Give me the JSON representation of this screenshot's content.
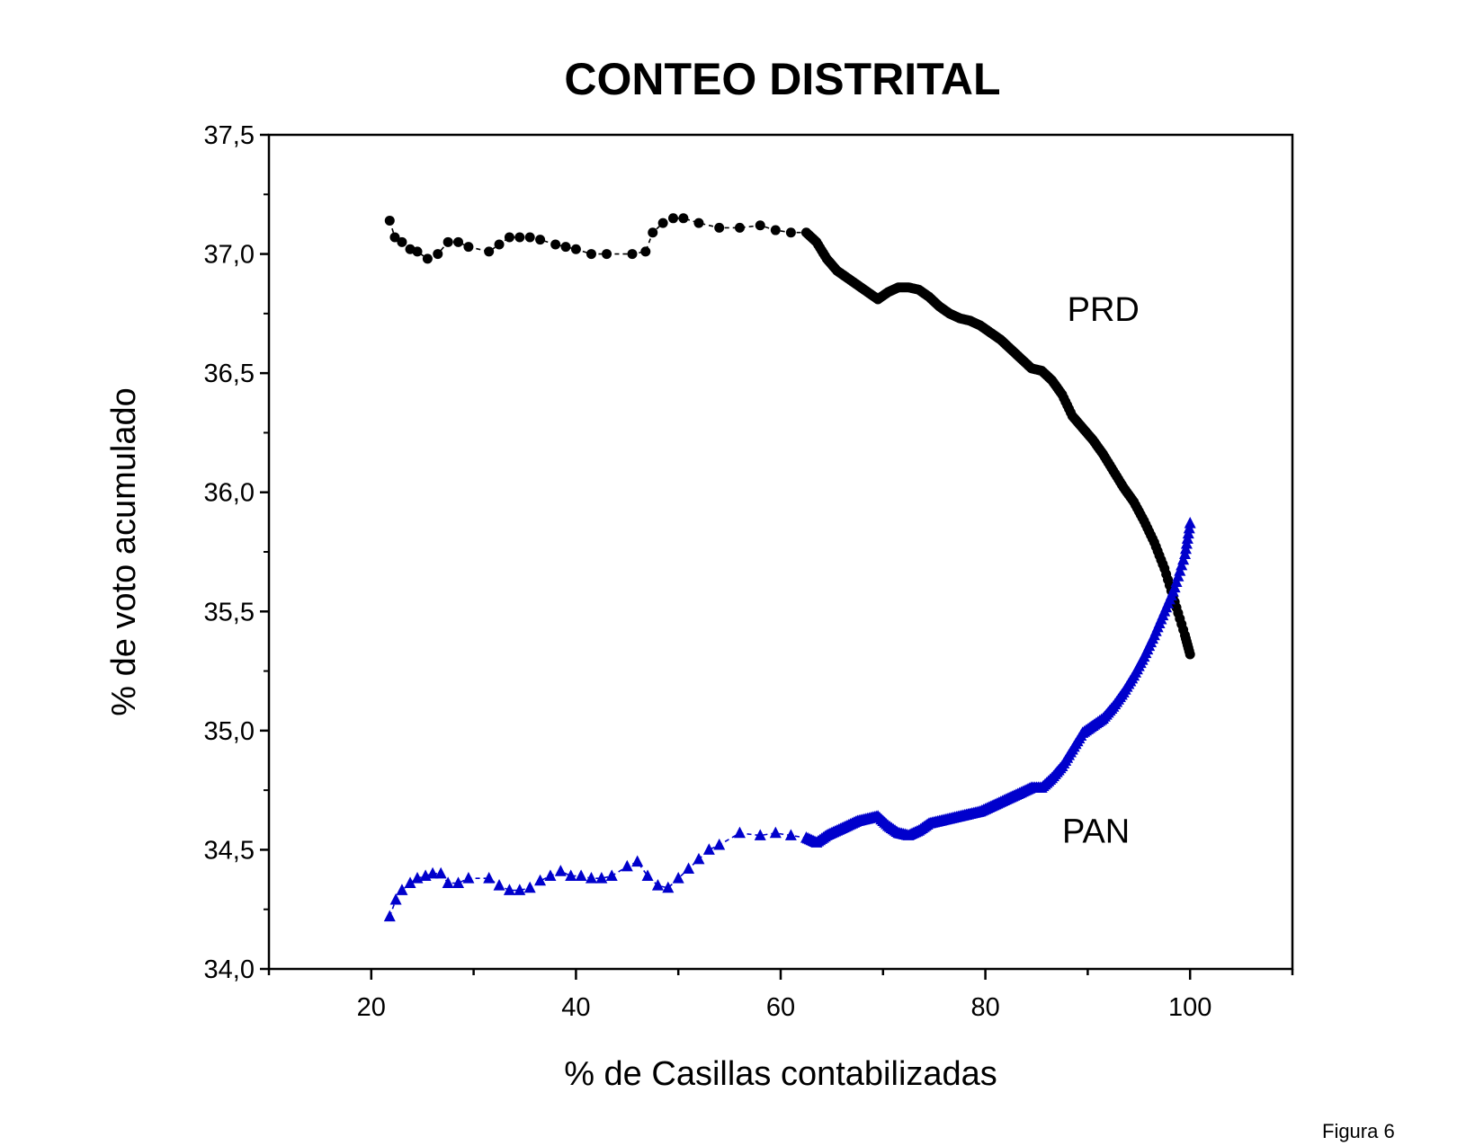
{
  "chart_data": {
    "type": "scatter",
    "title": "CONTEO DISTRITAL",
    "xlabel": "% de Casillas contabilizadas",
    "ylabel": "% de voto acumulado",
    "xlim": [
      10,
      110
    ],
    "ylim": [
      34.0,
      37.5
    ],
    "xticks": [
      20,
      40,
      60,
      80,
      100
    ],
    "xtick_labels": [
      "20",
      "40",
      "60",
      "80",
      "100"
    ],
    "yticks": [
      34.0,
      34.5,
      35.0,
      35.5,
      36.0,
      36.5,
      37.0,
      37.5
    ],
    "ytick_labels": [
      "34,0",
      "34,5",
      "35,0",
      "35,5",
      "36,0",
      "36,5",
      "37,0",
      "37,5"
    ],
    "grid": false,
    "legend": "none",
    "series": [
      {
        "name": "PRD",
        "marker": "circle",
        "color": "#000000",
        "x": [
          21.8,
          22.3,
          23.0,
          23.8,
          24.5,
          25.5,
          26.5,
          27.5,
          28.5,
          29.5,
          31.5,
          32.5,
          33.5,
          34.5,
          35.5,
          36.5,
          38.0,
          39.0,
          40.0,
          41.5,
          43.0,
          45.5,
          46.8,
          47.5,
          48.5,
          49.5,
          50.5,
          52.0,
          54.0,
          56.0,
          58.0,
          59.5,
          61.0,
          62.5,
          63.5,
          64.5,
          65.5,
          66.5,
          67.5,
          68.5,
          69.5,
          70.5,
          71.5,
          72.5,
          73.5,
          74.5,
          75.5,
          76.5,
          77.5,
          78.5,
          79.5,
          80.5,
          81.5,
          82.5,
          83.5,
          84.5,
          85.5,
          86.5,
          87.5,
          88.5,
          89.5,
          90.5,
          91.5,
          92.5,
          93.5,
          94.5,
          95.5,
          96.5,
          97.5,
          98.5,
          99.5,
          100.0
        ],
        "values": [
          37.14,
          37.07,
          37.05,
          37.02,
          37.01,
          36.98,
          37.0,
          37.05,
          37.05,
          37.03,
          37.01,
          37.04,
          37.07,
          37.07,
          37.07,
          37.06,
          37.04,
          37.03,
          37.02,
          37.0,
          37.0,
          37.0,
          37.01,
          37.09,
          37.13,
          37.15,
          37.15,
          37.13,
          37.11,
          37.11,
          37.12,
          37.1,
          37.09,
          37.09,
          37.05,
          36.98,
          36.93,
          36.9,
          36.87,
          36.84,
          36.81,
          36.84,
          36.86,
          36.86,
          36.85,
          36.82,
          36.78,
          36.75,
          36.73,
          36.72,
          36.7,
          36.67,
          36.64,
          36.6,
          36.56,
          36.52,
          36.51,
          36.47,
          36.41,
          36.32,
          36.27,
          36.22,
          36.16,
          36.09,
          36.02,
          35.96,
          35.88,
          35.79,
          35.68,
          35.54,
          35.4,
          35.32
        ]
      },
      {
        "name": "PAN",
        "marker": "triangle",
        "color": "#0000cc",
        "x": [
          21.8,
          22.4,
          23.0,
          23.8,
          24.5,
          25.3,
          26.0,
          26.8,
          27.5,
          28.5,
          29.5,
          31.5,
          32.5,
          33.5,
          34.5,
          35.5,
          36.5,
          37.5,
          38.5,
          39.5,
          40.5,
          41.5,
          42.5,
          43.5,
          45.0,
          46.0,
          47.0,
          48.0,
          49.0,
          50.0,
          51.0,
          52.0,
          53.0,
          54.0,
          56.0,
          58.0,
          59.5,
          61.0,
          62.5,
          63.5,
          64.5,
          65.5,
          66.5,
          67.5,
          68.5,
          69.5,
          70.5,
          71.5,
          72.5,
          73.5,
          74.5,
          75.5,
          76.5,
          77.5,
          78.5,
          79.5,
          80.5,
          81.5,
          82.5,
          83.5,
          84.5,
          85.5,
          86.5,
          87.5,
          88.5,
          89.5,
          90.5,
          91.5,
          92.5,
          93.5,
          94.5,
          95.5,
          96.5,
          97.5,
          98.5,
          99.5,
          100.0
        ],
        "values": [
          34.22,
          34.29,
          34.33,
          34.36,
          34.38,
          34.39,
          34.4,
          34.4,
          34.36,
          34.36,
          34.38,
          34.38,
          34.35,
          34.33,
          34.33,
          34.34,
          34.37,
          34.39,
          34.41,
          34.39,
          34.39,
          34.38,
          34.38,
          34.39,
          34.43,
          34.45,
          34.39,
          34.35,
          34.34,
          34.38,
          34.42,
          34.46,
          34.5,
          34.52,
          34.57,
          34.56,
          34.57,
          34.56,
          34.55,
          34.53,
          34.56,
          34.58,
          34.6,
          34.62,
          34.63,
          34.64,
          34.6,
          34.57,
          34.56,
          34.58,
          34.61,
          34.62,
          34.63,
          34.64,
          34.65,
          34.66,
          34.68,
          34.7,
          34.72,
          34.74,
          34.76,
          34.76,
          34.8,
          34.85,
          34.92,
          34.99,
          35.02,
          35.05,
          35.1,
          35.16,
          35.23,
          35.31,
          35.4,
          35.5,
          35.6,
          35.74,
          35.87
        ]
      }
    ],
    "annotations": [
      {
        "text": "PRD",
        "x": 88,
        "y": 36.72
      },
      {
        "text": "PAN",
        "x": 87.5,
        "y": 34.53
      }
    ]
  },
  "footnote": "Figura 6"
}
